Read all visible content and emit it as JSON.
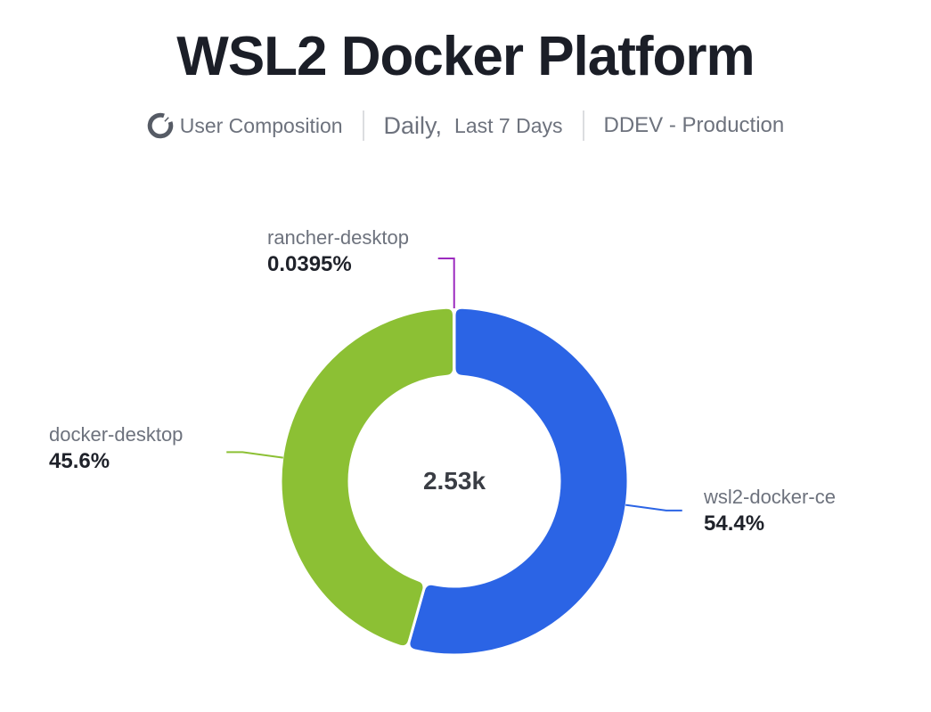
{
  "header": {
    "title": "WSL2 Docker Platform",
    "metric_label": "User Composition",
    "period_primary": "Daily,",
    "period_secondary": "Last 7 Days",
    "environment": "DDEV - Production",
    "icon": "donut-chart-icon"
  },
  "chart_data": {
    "type": "pie",
    "subtype": "donut",
    "title": "WSL2 Docker Platform",
    "center_total": "2.53k",
    "start_angle_deg": 0,
    "direction": "clockwise",
    "inner_radius_ratio": 0.61,
    "legend_position": "outside-labels",
    "segments": [
      {
        "name": "wsl2-docker-ce",
        "percent": 54.4,
        "percent_label": "54.4%",
        "color": "#2b64e5"
      },
      {
        "name": "docker-desktop",
        "percent": 45.6,
        "percent_label": "45.6%",
        "color": "#8cc034"
      },
      {
        "name": "rancher-desktop",
        "percent": 0.0395,
        "percent_label": "0.0395%",
        "color": "#9c2bbf"
      }
    ]
  },
  "colors": {
    "title_text": "#1b1e27",
    "subtitle_text": "#6d727d",
    "value_text": "#1f222a",
    "center_text": "#3a3d44",
    "divider": "#dcdde0",
    "background": "#ffffff"
  }
}
